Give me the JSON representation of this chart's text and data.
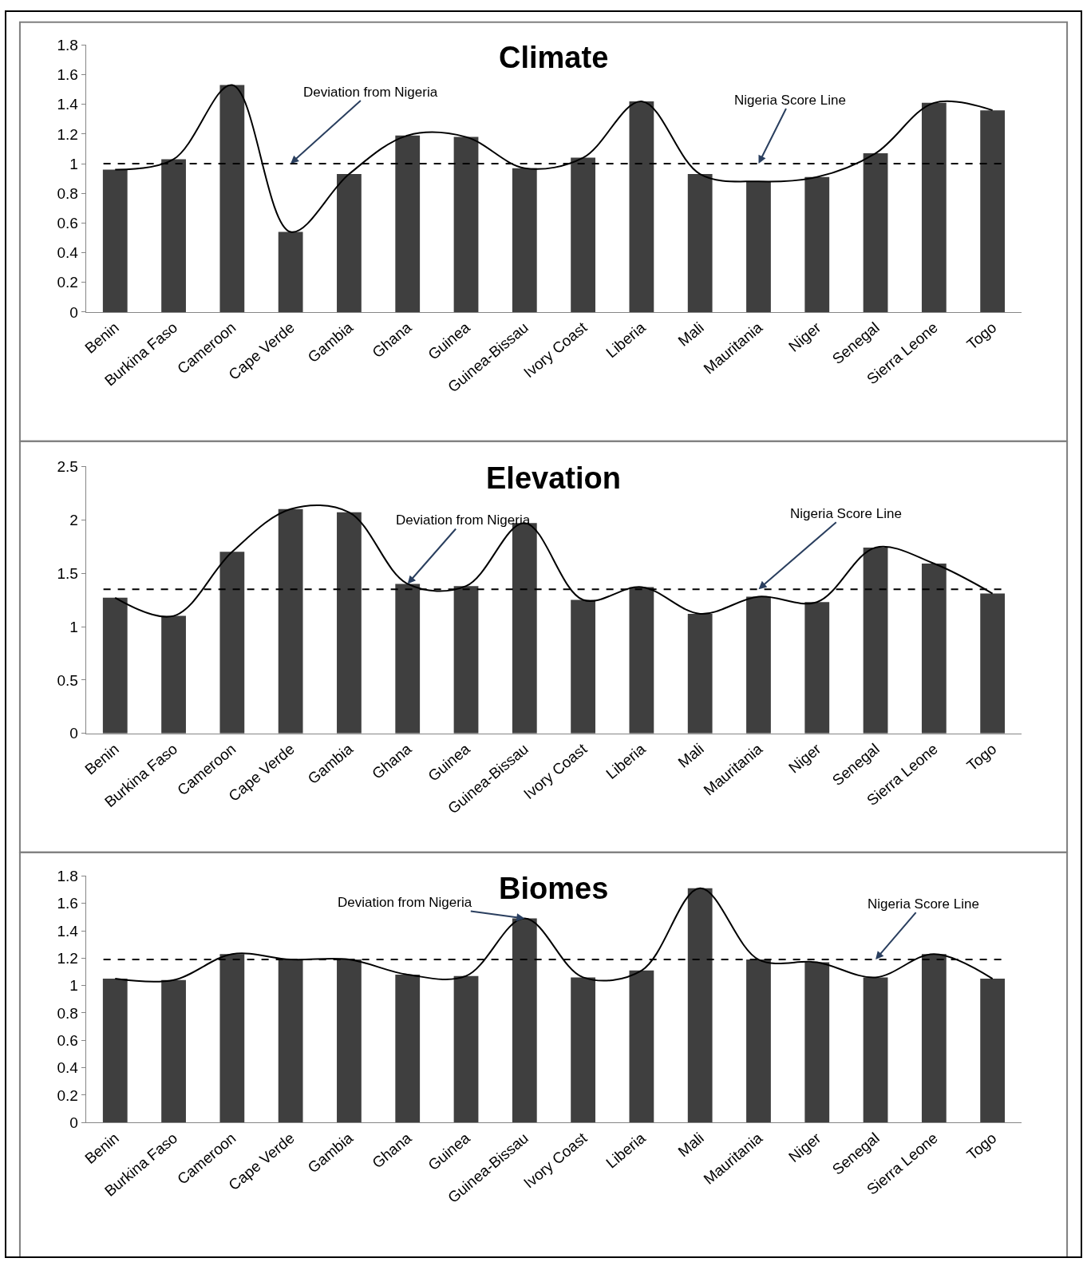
{
  "chart_data": [
    {
      "type": "bar",
      "title": "Climate",
      "categories": [
        "Benin",
        "Burkina Faso",
        "Cameroon",
        "Cape Verde",
        "Gambia",
        "Ghana",
        "Guinea",
        "Guinea-Bissau",
        "Ivory Coast",
        "Liberia",
        "Mali",
        "Mauritania",
        "Niger",
        "Senegal",
        "Sierra Leone",
        "Togo"
      ],
      "series": [
        {
          "color": "#3f3f3f",
          "values": [
            0.96,
            1.03,
            1.53,
            0.54,
            0.93,
            1.19,
            1.18,
            0.97,
            1.04,
            1.42,
            0.93,
            0.88,
            0.91,
            1.07,
            1.41,
            1.36
          ]
        },
        {
          "type": "line",
          "color": "#000000",
          "values": [
            0.96,
            1.03,
            1.53,
            0.54,
            0.93,
            1.19,
            1.18,
            0.97,
            1.04,
            1.42,
            0.93,
            0.88,
            0.91,
            1.07,
            1.41,
            1.36
          ]
        }
      ],
      "ylim": [
        0,
        1.8
      ],
      "yticks": [
        0,
        0.2,
        0.4,
        0.6,
        0.8,
        1,
        1.2,
        1.4,
        1.6,
        1.8
      ],
      "marker": "none",
      "ref_lines": [
        {
          "axis": "y",
          "value": 1.0,
          "color": "#000000",
          "line_style": "dashed"
        }
      ],
      "annotations": [
        {
          "text": "Deviation from Nigeria",
          "x": "Cape Verde",
          "y": 1.0
        },
        {
          "text": "Nigeria Score Line",
          "x": "Mauritania",
          "y": 1.0
        }
      ]
    },
    {
      "type": "bar",
      "title": "Elevation",
      "categories": [
        "Benin",
        "Burkina Faso",
        "Cameroon",
        "Cape Verde",
        "Gambia",
        "Ghana",
        "Guinea",
        "Guinea-Bissau",
        "Ivory Coast",
        "Liberia",
        "Mali",
        "Mauritania",
        "Niger",
        "Senegal",
        "Sierra Leone",
        "Togo"
      ],
      "series": [
        {
          "color": "#3f3f3f",
          "values": [
            1.27,
            1.1,
            1.7,
            2.1,
            2.07,
            1.4,
            1.38,
            1.97,
            1.25,
            1.37,
            1.12,
            1.28,
            1.23,
            1.74,
            1.59,
            1.31
          ]
        },
        {
          "type": "line",
          "color": "#000000",
          "values": [
            1.27,
            1.1,
            1.7,
            2.1,
            2.07,
            1.4,
            1.38,
            1.97,
            1.25,
            1.37,
            1.12,
            1.28,
            1.23,
            1.74,
            1.59,
            1.31
          ]
        }
      ],
      "ylim": [
        0,
        2.5
      ],
      "yticks": [
        0,
        0.5,
        1,
        1.5,
        2,
        2.5
      ],
      "marker": "none",
      "ref_lines": [
        {
          "axis": "y",
          "value": 1.35,
          "color": "#000000",
          "line_style": "dashed"
        }
      ],
      "annotations": [
        {
          "text": "Deviation from Nigeria",
          "x": "Ghana",
          "y": 1.4
        },
        {
          "text": "Nigeria Score Line",
          "x": "Mauritania",
          "y": 1.35
        }
      ]
    },
    {
      "type": "bar",
      "title": "Biomes",
      "categories": [
        "Benin",
        "Burkina Faso",
        "Cameroon",
        "Cape Verde",
        "Gambia",
        "Ghana",
        "Guinea",
        "Guinea-Bissau",
        "Ivory Coast",
        "Liberia",
        "Mali",
        "Mauritania",
        "Niger",
        "Senegal",
        "Sierra Leone",
        "Togo"
      ],
      "series": [
        {
          "color": "#3f3f3f",
          "values": [
            1.05,
            1.04,
            1.23,
            1.19,
            1.19,
            1.08,
            1.07,
            1.49,
            1.06,
            1.11,
            1.71,
            1.19,
            1.17,
            1.06,
            1.23,
            1.05
          ]
        },
        {
          "type": "line",
          "color": "#000000",
          "values": [
            1.05,
            1.04,
            1.23,
            1.19,
            1.19,
            1.08,
            1.07,
            1.49,
            1.06,
            1.11,
            1.71,
            1.19,
            1.17,
            1.06,
            1.23,
            1.05
          ]
        }
      ],
      "ylim": [
        0,
        1.8
      ],
      "yticks": [
        0,
        0.2,
        0.4,
        0.6,
        0.8,
        1,
        1.2,
        1.4,
        1.6,
        1.8
      ],
      "marker": "none",
      "ref_lines": [
        {
          "axis": "y",
          "value": 1.19,
          "color": "#000000",
          "line_style": "dashed"
        }
      ],
      "annotations": [
        {
          "text": "Deviation from Nigeria",
          "x": "Guinea-Bissau",
          "y": 1.49
        },
        {
          "text": "Nigeria Score Line",
          "x": "Senegal",
          "y": 1.19
        }
      ]
    }
  ]
}
